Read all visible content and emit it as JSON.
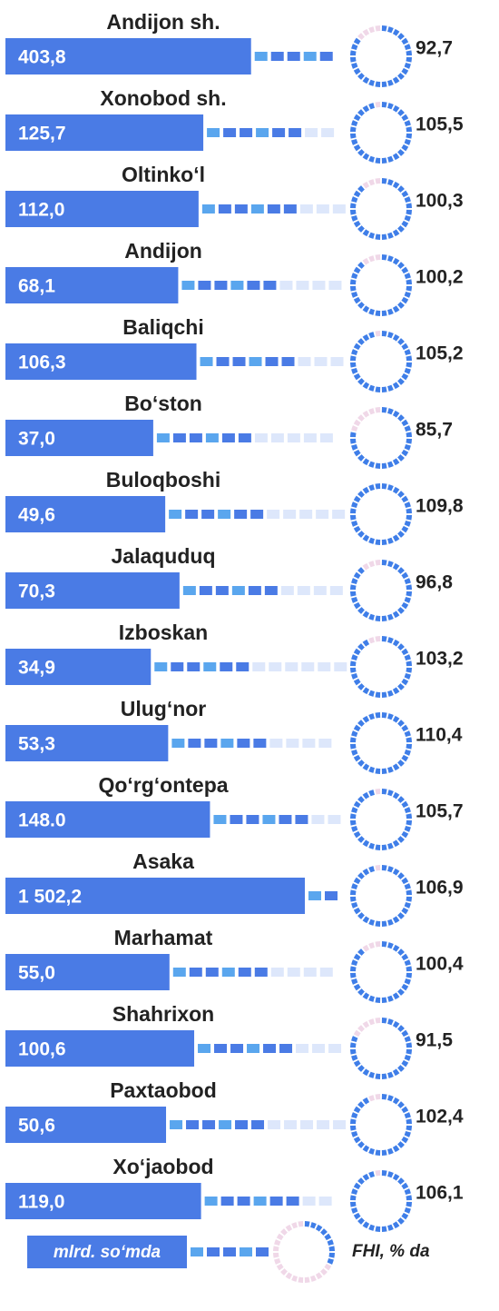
{
  "chart_data": {
    "type": "bar",
    "categories": [
      "Andijon sh.",
      "Xonobod sh.",
      "Oltinko‘l",
      "Andijon",
      "Baliqchi",
      "Bo‘ston",
      "Buloqboshi",
      "Jalaquduq",
      "Izboskan",
      "Ulug‘nor",
      "Qo‘rg‘ontepa",
      "Asaka",
      "Marhamat",
      "Shahrixon",
      "Paxtaobod",
      "Xo‘jaobod"
    ],
    "series": [
      {
        "name": "mlrd. so‘mda",
        "color": "#4a7be5",
        "values": [
          403.8,
          125.7,
          112.0,
          68.1,
          106.3,
          37.0,
          49.6,
          70.3,
          34.9,
          53.3,
          148.0,
          1502.2,
          55.0,
          100.6,
          50.6,
          119.0
        ],
        "value_labels": [
          "403,8",
          "125,7",
          "112,0",
          "68,1",
          "106,3",
          "37,0",
          "49,6",
          "70,3",
          "34,9",
          "53,3",
          "148.0",
          "1 502,2",
          "55,0",
          "100,6",
          "50,6",
          "119,0"
        ]
      },
      {
        "name": "FHI, % da",
        "color": "#3f7ee8",
        "values": [
          92.7,
          105.5,
          100.3,
          100.2,
          105.2,
          85.7,
          109.8,
          96.8,
          103.2,
          110.4,
          105.7,
          106.9,
          100.4,
          91.5,
          102.4,
          106.1
        ],
        "value_labels": [
          "92,7",
          "105,5",
          "100,3",
          "100,2",
          "105,2",
          "85,7",
          "109,8",
          "96,8",
          "103,2",
          "110,4",
          "105,7",
          "106,9",
          "100,4",
          "91,5",
          "102,4",
          "106,1"
        ]
      }
    ]
  }
}
